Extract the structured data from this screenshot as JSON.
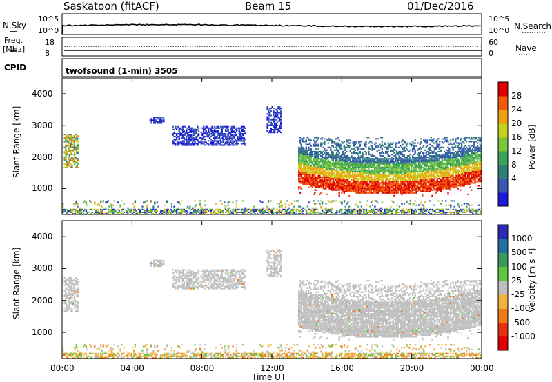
{
  "header": {
    "title": "Saskatoon (fitACF)",
    "beam": "Beam 15",
    "date": "01/Dec/2016"
  },
  "top_panels": {
    "nsky_label": "N.Sky",
    "nsky_ticks": [
      "10^5",
      "10^0"
    ],
    "nsearch_label": "N.Search",
    "nsearch_ticks": [
      "10^5",
      "10^0"
    ],
    "freq_label": "Freq.",
    "freq_unit": "[MHz]",
    "freq_ticks": [
      "18",
      "8"
    ],
    "nave_label": "Nave",
    "nave_ticks": [
      "60",
      "0"
    ],
    "cpid_label": "CPID",
    "cpid_text": "twofsound (1-min) 3505"
  },
  "chart_data": [
    {
      "type": "heatmap",
      "panel": "power",
      "ylabel": "Slant Range [km]",
      "ylim": [
        180,
        4500
      ],
      "y_ticks": [
        "4000",
        "3000",
        "2000",
        "1000"
      ],
      "x_ticks": [
        "00:00",
        "04:00",
        "08:00",
        "12:00",
        "16:00",
        "20:00",
        "00:00"
      ],
      "xlim_hours": [
        0,
        24
      ],
      "colorbar": {
        "label": "Power [dB]",
        "ticks": [
          "28",
          "24",
          "20",
          "16",
          "12",
          "8",
          "4"
        ],
        "levels": [
          0,
          4,
          8,
          12,
          16,
          20,
          24,
          28,
          32
        ],
        "colors": [
          "#1c1cd8",
          "#3a56b4",
          "#2e7f78",
          "#3aa35a",
          "#7cc63c",
          "#c8d01e",
          "#f0a010",
          "#f05a0a",
          "#e00000"
        ]
      },
      "regions": [
        {
          "x": [
            0.1,
            0.9
          ],
          "y": [
            1650,
            2700
          ],
          "level": 10
        },
        {
          "x": [
            5.0,
            5.8
          ],
          "y": [
            3050,
            3250
          ],
          "level": 4
        },
        {
          "x": [
            6.3,
            10.5
          ],
          "y": [
            2350,
            2950
          ],
          "level": 5
        },
        {
          "x": [
            11.7,
            12.5
          ],
          "y": [
            2750,
            3600
          ],
          "level": 5
        },
        {
          "x": [
            13.5,
            24.0
          ],
          "y": [
            750,
            2600
          ],
          "level": "band"
        },
        {
          "x": [
            0.0,
            24.0
          ],
          "y": [
            180,
            600
          ],
          "level": "noise"
        }
      ]
    },
    {
      "type": "heatmap",
      "panel": "velocity",
      "ylabel": "Slant Range [km]",
      "ylim": [
        180,
        4500
      ],
      "y_ticks": [
        "4000",
        "3000",
        "2000",
        "1000"
      ],
      "x_ticks": [
        "00:00",
        "04:00",
        "08:00",
        "12:00",
        "16:00",
        "20:00",
        "00:00"
      ],
      "xlabel": "Time UT",
      "colorbar": {
        "label": "Velocity [m s⁻¹]",
        "ticks": [
          "1000",
          "500",
          "100",
          "25",
          "-25",
          "-100",
          "-500",
          "-1000"
        ],
        "colors": [
          "#2a2ab4",
          "#1f6fa0",
          "#3a9a5c",
          "#5ec83c",
          "#c0c0c0",
          "#f0b43c",
          "#f07a14",
          "#e83010",
          "#e00000"
        ]
      },
      "regions": [
        {
          "x": [
            0.1,
            0.9
          ],
          "y": [
            1650,
            2700
          ],
          "velocity": 0
        },
        {
          "x": [
            5.0,
            5.8
          ],
          "y": [
            3050,
            3250
          ],
          "velocity": 0
        },
        {
          "x": [
            6.3,
            10.5
          ],
          "y": [
            2350,
            2950
          ],
          "velocity": 0
        },
        {
          "x": [
            11.7,
            12.5
          ],
          "y": [
            2750,
            3600
          ],
          "velocity": 0
        },
        {
          "x": [
            13.5,
            24.0
          ],
          "y": [
            750,
            2600
          ],
          "velocity": 0
        },
        {
          "x": [
            0.0,
            24.0
          ],
          "y": [
            180,
            600
          ],
          "velocity": -100
        }
      ]
    }
  ]
}
